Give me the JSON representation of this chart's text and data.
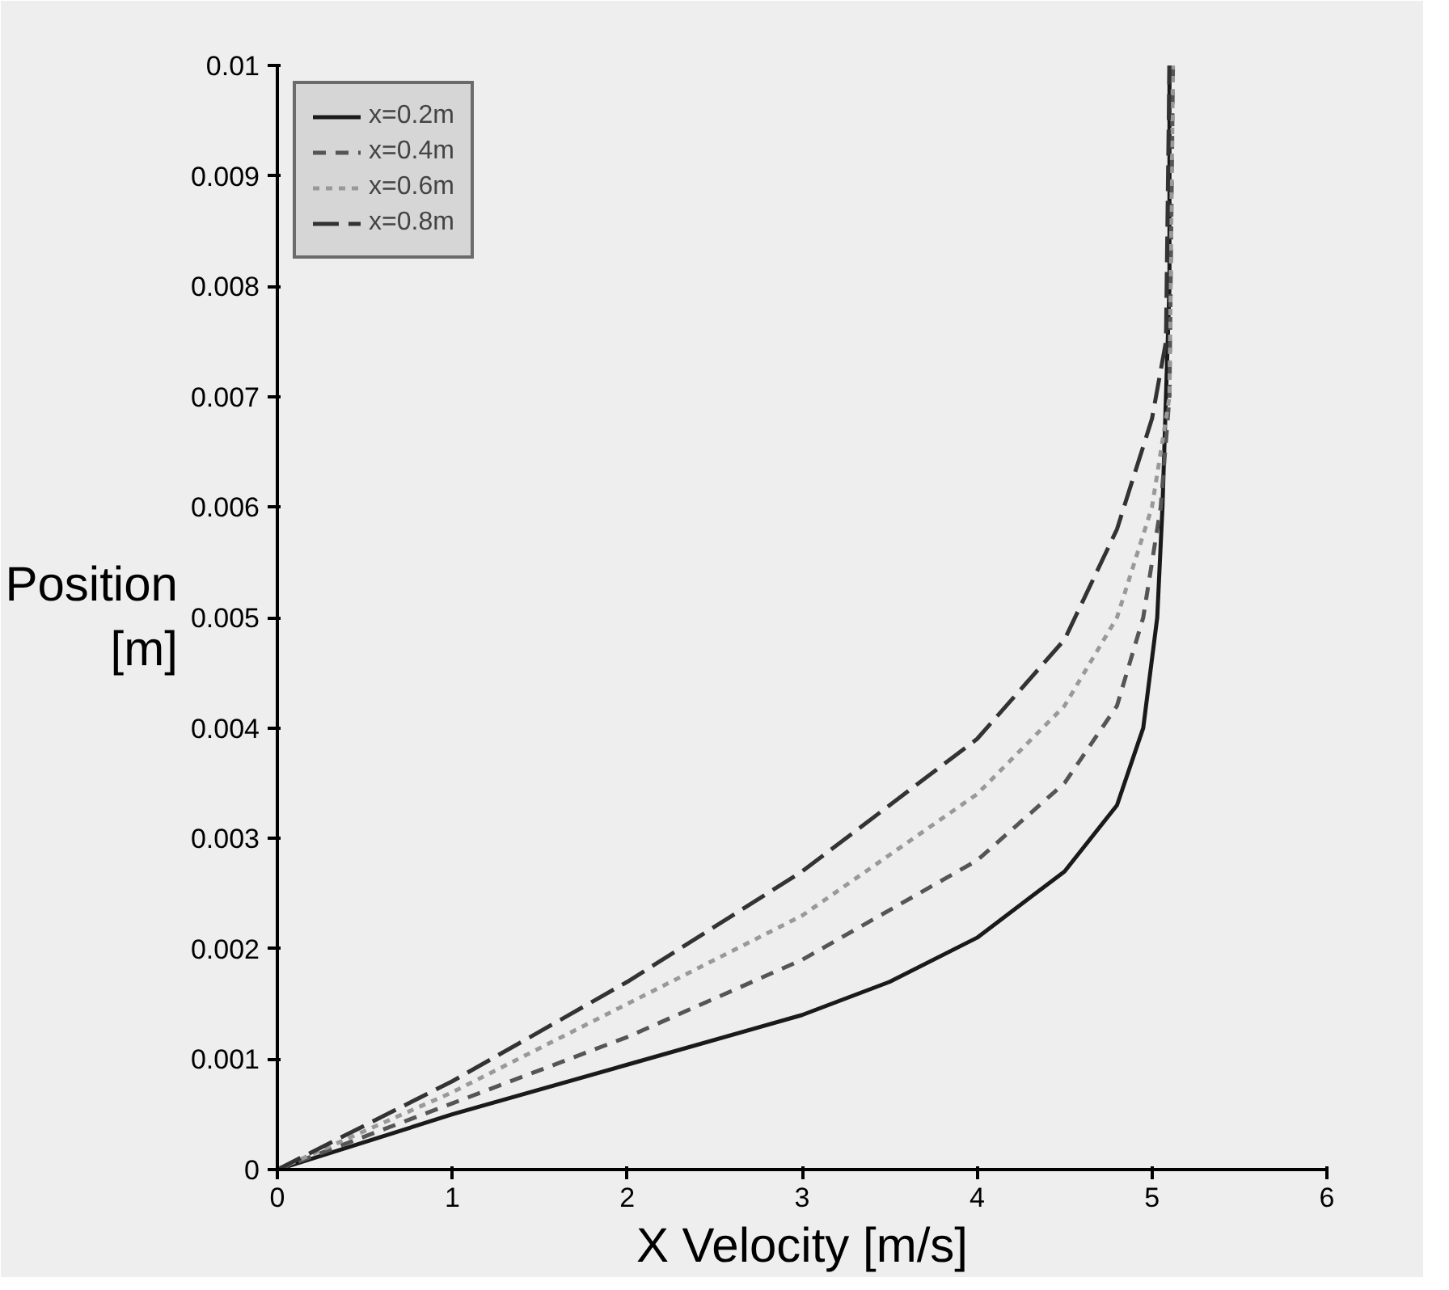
{
  "chart_data": {
    "type": "line",
    "xlabel": "X Velocity [m/s]",
    "ylabel": "Position [m]",
    "xlim": [
      0,
      6
    ],
    "xticks": [
      0,
      1,
      2,
      3,
      4,
      5,
      6
    ],
    "ylim": [
      0,
      0.01
    ],
    "yticks": [
      0,
      0.001,
      0.002,
      0.003,
      0.004,
      0.005,
      0.006,
      0.007,
      0.008,
      0.009,
      0.01
    ],
    "grid": false,
    "legend": "top left",
    "marker": "none",
    "series": [
      {
        "name": "x=0.2m",
        "color": "#1a1a1a",
        "line_style": "solid",
        "x": [
          0,
          1,
          2,
          3,
          3.5,
          4,
          4.5,
          4.8,
          4.95,
          5.03,
          5.06,
          5.08,
          5.1,
          5.1
        ],
        "values": [
          0,
          0.0005,
          0.00095,
          0.0014,
          0.0017,
          0.0021,
          0.0027,
          0.0033,
          0.004,
          0.005,
          0.006,
          0.007,
          0.008,
          0.01
        ]
      },
      {
        "name": "x=0.4m",
        "color": "#555555",
        "line_style": "dashed",
        "x": [
          0,
          1,
          2,
          3,
          4,
          4.5,
          4.8,
          4.95,
          5.05,
          5.1,
          5.12
        ],
        "values": [
          0,
          0.0006,
          0.0012,
          0.0019,
          0.0028,
          0.0035,
          0.0042,
          0.005,
          0.006,
          0.007,
          0.01
        ]
      },
      {
        "name": "x=0.6m",
        "color": "#999999",
        "line_style": "dotted",
        "x": [
          0,
          1,
          2,
          3,
          4,
          4.5,
          4.8,
          5.0,
          5.1,
          5.12
        ],
        "values": [
          0,
          0.0007,
          0.0015,
          0.0023,
          0.0034,
          0.0042,
          0.005,
          0.006,
          0.007,
          0.01
        ]
      },
      {
        "name": "x=0.8m",
        "color": "#333333",
        "line_style": "longdash",
        "x": [
          0,
          1,
          2,
          3,
          3.5,
          4,
          4.5,
          4.8,
          5.0,
          5.08,
          5.1
        ],
        "values": [
          0,
          0.0008,
          0.0017,
          0.0027,
          0.0033,
          0.0039,
          0.0048,
          0.0058,
          0.0068,
          0.0075,
          0.01
        ]
      }
    ]
  }
}
